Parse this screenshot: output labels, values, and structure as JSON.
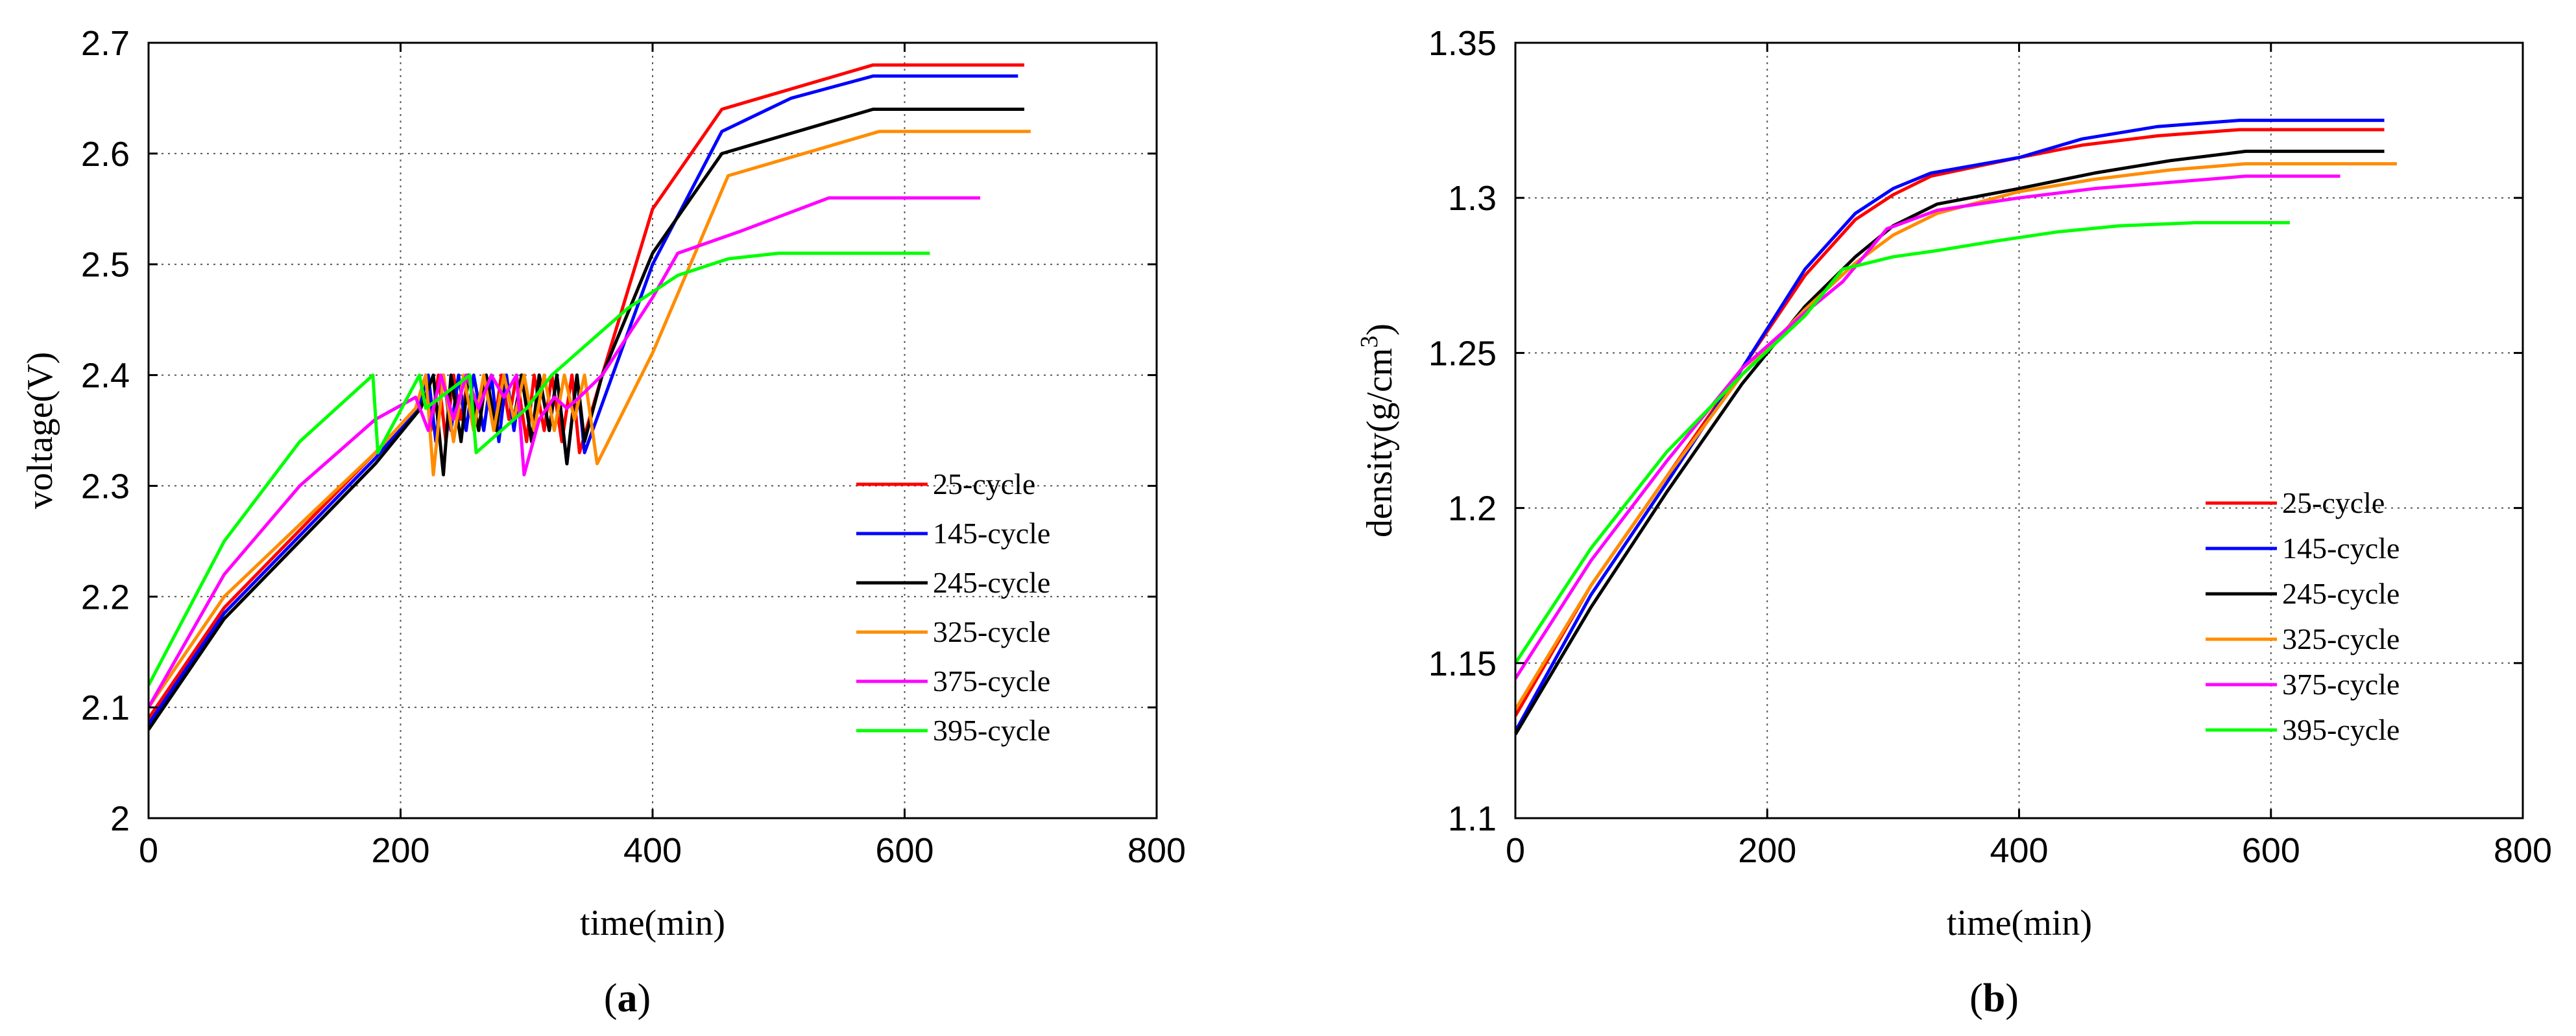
{
  "chart_data": [
    {
      "type": "line",
      "caption": "(a)",
      "caption_letter": "a",
      "xlabel": "time(min)",
      "ylabel": "voltage(V)",
      "xlim": [
        0,
        800
      ],
      "ylim": [
        2.0,
        2.7
      ],
      "xticks": [
        0,
        200,
        400,
        600,
        800
      ],
      "xtick_labels": [
        "0",
        "200",
        "400",
        "600",
        "800"
      ],
      "yticks": [
        2.0,
        2.1,
        2.2,
        2.3,
        2.4,
        2.5,
        2.6,
        2.7
      ],
      "ytick_labels": [
        "2",
        "2.1",
        "2.2",
        "2.3",
        "2.4",
        "2.5",
        "2.6",
        "2.7"
      ],
      "grid": "dotted",
      "legend_position": "bottom-right",
      "series": [
        {
          "name": "25-cycle",
          "color": "#ff0000",
          "x": [
            0,
            60,
            120,
            180,
            212,
            220,
            224,
            230,
            236,
            242,
            248,
            254,
            262,
            268,
            274,
            280,
            286,
            292,
            300,
            306,
            314,
            320,
            328,
            336,
            342,
            360,
            400,
            455,
            575,
            695
          ],
          "y": [
            2.09,
            2.19,
            2.26,
            2.33,
            2.37,
            2.4,
            2.35,
            2.4,
            2.34,
            2.4,
            2.36,
            2.4,
            2.35,
            2.4,
            2.35,
            2.4,
            2.36,
            2.4,
            2.34,
            2.4,
            2.35,
            2.4,
            2.34,
            2.4,
            2.33,
            2.4,
            2.55,
            2.64,
            2.68,
            2.68
          ]
        },
        {
          "name": "145-cycle",
          "color": "#0000ff",
          "x": [
            0,
            60,
            120,
            180,
            214,
            222,
            228,
            234,
            240,
            246,
            252,
            258,
            266,
            272,
            278,
            284,
            290,
            296,
            304,
            310,
            318,
            324,
            332,
            340,
            346,
            400,
            455,
            510,
            575,
            690
          ],
          "y": [
            2.085,
            2.185,
            2.255,
            2.325,
            2.37,
            2.4,
            2.34,
            2.4,
            2.35,
            2.4,
            2.35,
            2.4,
            2.35,
            2.4,
            2.34,
            2.4,
            2.35,
            2.4,
            2.34,
            2.4,
            2.35,
            2.4,
            2.32,
            2.4,
            2.33,
            2.5,
            2.62,
            2.65,
            2.67,
            2.67
          ]
        },
        {
          "name": "245-cycle",
          "color": "#000000",
          "x": [
            0,
            60,
            120,
            180,
            216,
            226,
            234,
            240,
            248,
            254,
            262,
            268,
            276,
            282,
            290,
            296,
            304,
            310,
            318,
            324,
            332,
            340,
            346,
            360,
            400,
            455,
            575,
            695
          ],
          "y": [
            2.08,
            2.18,
            2.25,
            2.32,
            2.37,
            2.4,
            2.31,
            2.4,
            2.34,
            2.4,
            2.35,
            2.4,
            2.35,
            2.4,
            2.36,
            2.4,
            2.34,
            2.4,
            2.35,
            2.4,
            2.32,
            2.4,
            2.34,
            2.4,
            2.51,
            2.6,
            2.64,
            2.64
          ]
        },
        {
          "name": "325-cycle",
          "color": "#ff8c00",
          "x": [
            0,
            60,
            120,
            180,
            212,
            220,
            226,
            234,
            242,
            250,
            258,
            266,
            274,
            282,
            290,
            298,
            306,
            314,
            322,
            330,
            338,
            346,
            356,
            400,
            460,
            580,
            700
          ],
          "y": [
            2.1,
            2.2,
            2.265,
            2.33,
            2.37,
            2.4,
            2.31,
            2.4,
            2.34,
            2.4,
            2.35,
            2.4,
            2.35,
            2.4,
            2.36,
            2.4,
            2.35,
            2.4,
            2.35,
            2.4,
            2.36,
            2.4,
            2.32,
            2.42,
            2.58,
            2.62,
            2.62
          ]
        },
        {
          "name": "375-cycle",
          "color": "#ff00ff",
          "x": [
            0,
            60,
            120,
            180,
            212,
            222,
            232,
            242,
            252,
            262,
            272,
            282,
            292,
            298,
            310,
            322,
            332,
            342,
            360,
            400,
            420,
            470,
            540,
            660
          ],
          "y": [
            2.1,
            2.22,
            2.3,
            2.36,
            2.38,
            2.35,
            2.4,
            2.36,
            2.4,
            2.37,
            2.4,
            2.38,
            2.4,
            2.31,
            2.36,
            2.38,
            2.37,
            2.38,
            2.4,
            2.47,
            2.51,
            2.53,
            2.56,
            2.56
          ]
        },
        {
          "name": "395-cycle",
          "color": "#00ff00",
          "x": [
            0,
            60,
            120,
            178,
            182,
            215,
            220,
            255,
            260,
            300,
            320,
            380,
            420,
            460,
            500,
            620
          ],
          "y": [
            2.12,
            2.25,
            2.34,
            2.4,
            2.33,
            2.4,
            2.37,
            2.4,
            2.33,
            2.37,
            2.4,
            2.46,
            2.49,
            2.505,
            2.51,
            2.51
          ]
        }
      ]
    },
    {
      "type": "line",
      "caption": "(b)",
      "caption_letter": "b",
      "xlabel": "time(min)",
      "ylabel": "density(g/cm3)",
      "ylabel_prefix": "density(g/cm",
      "ylabel_superscript": "3",
      "ylabel_suffix": ")",
      "xlim": [
        0,
        800
      ],
      "ylim": [
        1.1,
        1.35
      ],
      "xticks": [
        0,
        200,
        400,
        600,
        800
      ],
      "xtick_labels": [
        "0",
        "200",
        "400",
        "600",
        "800"
      ],
      "yticks": [
        1.1,
        1.15,
        1.2,
        1.25,
        1.3,
        1.35
      ],
      "ytick_labels": [
        "1.1",
        "1.15",
        "1.2",
        "1.25",
        "1.3",
        "1.35"
      ],
      "grid": "dotted",
      "legend_position": "bottom-right",
      "series": [
        {
          "name": "25-cycle",
          "color": "#ff0000",
          "x": [
            0,
            60,
            120,
            180,
            230,
            270,
            300,
            330,
            400,
            450,
            510,
            575,
            690
          ],
          "y": [
            1.133,
            1.175,
            1.21,
            1.245,
            1.275,
            1.293,
            1.301,
            1.307,
            1.313,
            1.317,
            1.32,
            1.322,
            1.322
          ]
        },
        {
          "name": "145-cycle",
          "color": "#0000ff",
          "x": [
            0,
            60,
            120,
            180,
            230,
            270,
            300,
            330,
            400,
            450,
            510,
            575,
            690
          ],
          "y": [
            1.128,
            1.172,
            1.208,
            1.245,
            1.277,
            1.295,
            1.303,
            1.308,
            1.313,
            1.319,
            1.323,
            1.325,
            1.325
          ]
        },
        {
          "name": "245-cycle",
          "color": "#000000",
          "x": [
            0,
            60,
            120,
            180,
            230,
            270,
            300,
            335,
            400,
            460,
            520,
            580,
            690
          ],
          "y": [
            1.127,
            1.168,
            1.205,
            1.24,
            1.265,
            1.281,
            1.291,
            1.298,
            1.303,
            1.308,
            1.312,
            1.315,
            1.315
          ]
        },
        {
          "name": "325-cycle",
          "color": "#ff8c00",
          "x": [
            0,
            60,
            120,
            180,
            230,
            270,
            300,
            335,
            400,
            460,
            520,
            580,
            700
          ],
          "y": [
            1.135,
            1.175,
            1.21,
            1.243,
            1.264,
            1.279,
            1.288,
            1.295,
            1.302,
            1.306,
            1.309,
            1.311,
            1.311
          ]
        },
        {
          "name": "375-cycle",
          "color": "#ff00ff",
          "x": [
            0,
            60,
            120,
            180,
            230,
            260,
            295,
            335,
            400,
            460,
            520,
            580,
            655
          ],
          "y": [
            1.145,
            1.183,
            1.215,
            1.245,
            1.263,
            1.273,
            1.29,
            1.296,
            1.3,
            1.303,
            1.305,
            1.307,
            1.307
          ]
        },
        {
          "name": "395-cycle",
          "color": "#00ff00",
          "x": [
            0,
            60,
            120,
            180,
            230,
            260,
            300,
            335,
            380,
            430,
            480,
            540,
            615
          ],
          "y": [
            1.15,
            1.187,
            1.218,
            1.243,
            1.262,
            1.277,
            1.281,
            1.283,
            1.286,
            1.289,
            1.291,
            1.292,
            1.292
          ]
        }
      ]
    }
  ]
}
